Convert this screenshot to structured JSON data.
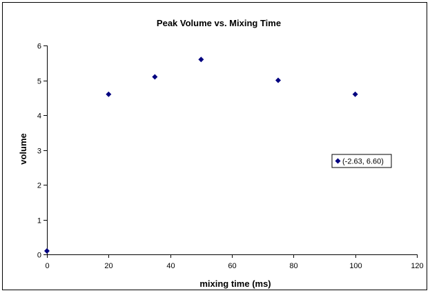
{
  "chart_data": {
    "type": "scatter",
    "title": "Peak Volume vs. Mixing Time",
    "xlabel": "mixing time (ms)",
    "ylabel": "volume",
    "xlim": [
      0,
      120
    ],
    "ylim": [
      0,
      6
    ],
    "xticks": [
      0,
      20,
      40,
      60,
      80,
      100,
      120
    ],
    "yticks": [
      0,
      1,
      2,
      3,
      4,
      5,
      6
    ],
    "grid": false,
    "legend_placement": "right",
    "marker": "diamond",
    "marker_color": "#000080",
    "series": [
      {
        "name": "(-2.63, 6.60)",
        "x": [
          0,
          20,
          35,
          50,
          75,
          100
        ],
        "y": [
          0.1,
          4.6,
          5.1,
          5.6,
          5.0,
          4.6
        ]
      }
    ]
  }
}
